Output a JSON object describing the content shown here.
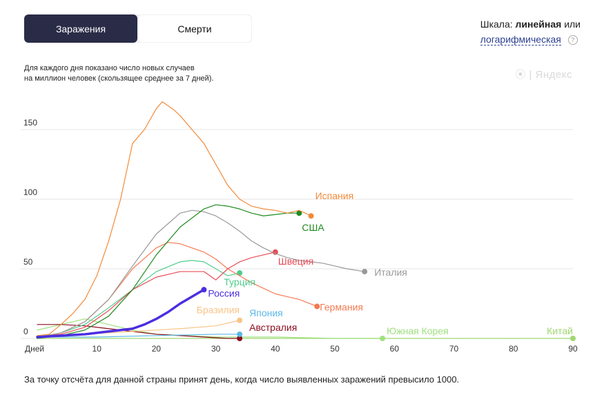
{
  "tabs": {
    "active": "Заражения",
    "inactive": "Смерти"
  },
  "scale": {
    "prefix": "Шкала:",
    "linear": "линейная",
    "or": "или",
    "log": "логарифмическая",
    "help": "?"
  },
  "description": {
    "line1": "Для каждого дня показано число новых случаев",
    "line2": "на миллион человек (скользящее среднее за 7 дней)."
  },
  "brand": "⦿ | Яндекс",
  "footnote": "За точку отсчёта для данной страны принят день, когда число выявленных заражений превысило 1000.",
  "colors": {
    "Испания": "#f28a3a",
    "США": "#1f8a1f",
    "Италия": "#999999",
    "Швеция": "#ea4a55",
    "Германия": "#f47a50",
    "Турция": "#4fcc8c",
    "Россия": "#4b2ee0",
    "Бразилия": "#f8c488",
    "Япония": "#5ab8e8",
    "Австралия": "#8b0d1e",
    "Южная Корея": "#9fe07f",
    "Китай": "#9fd870"
  },
  "chart_data": {
    "type": "line",
    "title": "",
    "xlabel": "Дней",
    "ylabel": "",
    "xlim": [
      0,
      90
    ],
    "ylim": [
      0,
      175
    ],
    "xticks": [
      10,
      20,
      30,
      40,
      50,
      60,
      70,
      80,
      90
    ],
    "yticks": [
      0,
      50,
      100,
      150
    ],
    "series": [
      {
        "name": "Испания",
        "x": [
          0,
          2,
          4,
          6,
          8,
          10,
          12,
          14,
          16,
          18,
          20,
          21,
          22,
          23,
          24,
          26,
          28,
          30,
          32,
          34,
          36,
          38,
          40,
          42,
          44,
          46
        ],
        "values": [
          2,
          3,
          10,
          18,
          28,
          45,
          70,
          100,
          140,
          150,
          165,
          170,
          167,
          164,
          160,
          150,
          140,
          125,
          110,
          100,
          95,
          93,
          92,
          90,
          92,
          88
        ]
      },
      {
        "name": "США",
        "x": [
          0,
          4,
          8,
          12,
          16,
          20,
          24,
          28,
          30,
          32,
          34,
          36,
          38,
          40,
          42,
          44
        ],
        "values": [
          0,
          2,
          6,
          16,
          35,
          60,
          80,
          93,
          96,
          95,
          93,
          90,
          88,
          89,
          90,
          90
        ]
      },
      {
        "name": "Италия",
        "x": [
          0,
          4,
          8,
          12,
          16,
          20,
          24,
          26,
          28,
          30,
          32,
          34,
          36,
          38,
          40,
          42,
          44,
          46,
          48,
          50,
          52,
          55
        ],
        "values": [
          1,
          4,
          12,
          28,
          52,
          75,
          90,
          92,
          91,
          88,
          83,
          77,
          70,
          65,
          61,
          58,
          56,
          55,
          54,
          52,
          50,
          48
        ]
      },
      {
        "name": "Швеция",
        "x": [
          0,
          4,
          8,
          12,
          16,
          20,
          24,
          28,
          30,
          32,
          34,
          36,
          38,
          40
        ],
        "values": [
          1,
          3,
          8,
          20,
          35,
          44,
          48,
          48,
          42,
          50,
          55,
          58,
          60,
          62
        ]
      },
      {
        "name": "Германия",
        "x": [
          0,
          4,
          8,
          12,
          16,
          20,
          22,
          24,
          26,
          28,
          30,
          32,
          34,
          36,
          38,
          40,
          42,
          44,
          47
        ],
        "values": [
          0,
          4,
          12,
          28,
          50,
          65,
          69,
          68,
          65,
          62,
          57,
          50,
          45,
          40,
          36,
          32,
          30,
          28,
          23
        ]
      },
      {
        "name": "Турция",
        "x": [
          0,
          4,
          8,
          12,
          16,
          20,
          24,
          26,
          28,
          30,
          32,
          34
        ],
        "values": [
          0,
          4,
          10,
          22,
          35,
          48,
          55,
          56,
          55,
          50,
          45,
          47
        ]
      },
      {
        "name": "Россия",
        "x": [
          0,
          4,
          8,
          12,
          16,
          18,
          20,
          22,
          24,
          26,
          28
        ],
        "values": [
          1,
          2,
          3,
          5,
          7,
          10,
          14,
          19,
          25,
          30,
          35
        ]
      },
      {
        "name": "Бразилия",
        "x": [
          0,
          8,
          16,
          24,
          30,
          34
        ],
        "values": [
          2,
          3,
          5,
          7,
          9,
          13
        ]
      },
      {
        "name": "Япония",
        "x": [
          0,
          10,
          20,
          30,
          34
        ],
        "values": [
          1,
          1,
          2,
          3,
          3
        ]
      },
      {
        "name": "Австралия",
        "x": [
          0,
          4,
          8,
          12,
          16,
          20,
          24,
          28,
          32,
          34
        ],
        "values": [
          10,
          10,
          9,
          7,
          5,
          3,
          2,
          1,
          0,
          0
        ]
      },
      {
        "name": "Южная Корея",
        "x": [
          0,
          4,
          8,
          12,
          16,
          20,
          30,
          40,
          50,
          58
        ],
        "values": [
          6,
          10,
          14,
          10,
          6,
          3,
          1,
          1,
          0,
          0
        ]
      },
      {
        "name": "Китай",
        "x": [
          0,
          20,
          40,
          60,
          80,
          90
        ],
        "values": [
          0,
          0,
          0,
          0,
          0,
          0
        ]
      }
    ],
    "labels": [
      "Испания",
      "США",
      "Италия",
      "Швеция",
      "Германия",
      "Турция",
      "Россия",
      "Бразилия",
      "Япония",
      "Австралия",
      "Южная Корея",
      "Китай"
    ]
  }
}
